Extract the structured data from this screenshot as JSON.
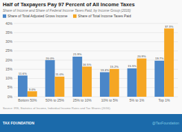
{
  "chart_data": {
    "type": "bar",
    "title": "Half of Taxpayers Pay 97 Percent of All Income Taxes",
    "subtitle": "Share of Income and Share of Federal Income Taxes Paid, by Income Group (2016)",
    "categories": [
      "Bottom 50%",
      "50% to 25%",
      "25% to 10%",
      "10% to 5%",
      "5% to 1%",
      "Top 1%"
    ],
    "series": [
      {
        "name": "Share of Total Adjusted Gross Income",
        "color": "#4a86c8",
        "values": [
          11.6,
          20.0,
          21.9,
          13.4,
          15.5,
          19.7
        ],
        "value_labels": [
          "11.6%",
          "20.0%",
          "21.9%",
          "13.4%",
          "15.5%",
          "19.7%"
        ]
      },
      {
        "name": "Share of Total Income Taxes Paid",
        "color": "#f5a623",
        "values": [
          3.0,
          11.0,
          16.5,
          15.2,
          20.9,
          37.3
        ],
        "value_labels": [
          "3.0%",
          "11.0%",
          "16.5%",
          "15.2%",
          "20.9%",
          "37.3%"
        ]
      }
    ],
    "ylim": [
      0,
      40
    ],
    "yticks": [
      {
        "value": 0,
        "label": "0%"
      },
      {
        "value": 5,
        "label": "5%"
      },
      {
        "value": 10,
        "label": "10%"
      },
      {
        "value": 15,
        "label": "15%"
      },
      {
        "value": 20,
        "label": "20%"
      },
      {
        "value": 25,
        "label": "25%"
      },
      {
        "value": 30,
        "label": "30%"
      },
      {
        "value": 35,
        "label": "35%"
      },
      {
        "value": 40,
        "label": "40%"
      }
    ],
    "grid": true,
    "legend": "top",
    "data_labels": true,
    "annotations": [
      "Source: IRS, Statistics of Income, Individual Income Rates and Tax Shares (2016).",
      "TAX FOUNDATION",
      "@TaxFoundation"
    ]
  }
}
